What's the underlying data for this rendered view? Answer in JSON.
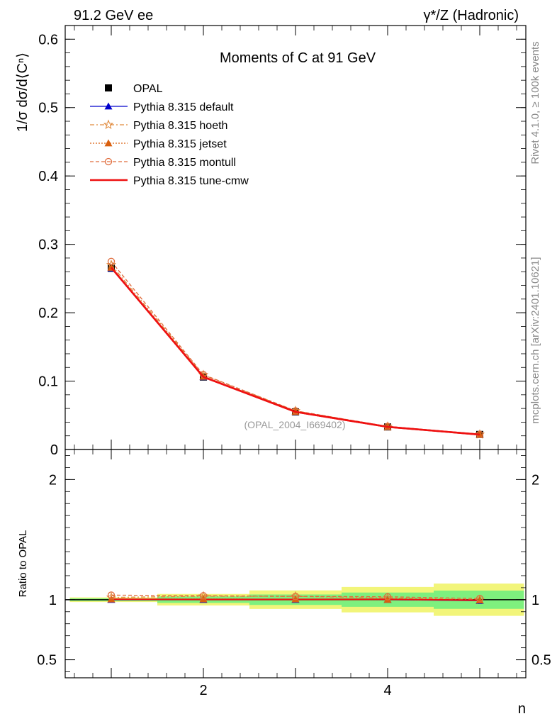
{
  "header": {
    "left_title": "91.2 GeV ee",
    "right_title": "γ*/Z (Hadronic)"
  },
  "side_labels": {
    "rivet": "Rivet 4.1.0, ≥ 100k events",
    "mcplots": "mcplots.cern.ch [arXiv:2401.10621]"
  },
  "chart_data": {
    "type": "line",
    "title": "Moments of C at 91 GeV",
    "analysis_tag": "(OPAL_2004_I669402)",
    "xlabel": "n",
    "ylabel": "1/σ  dσ/d⟨Cⁿ⟩",
    "ratio_ylabel": "Ratio to OPAL",
    "xlim": [
      0.5,
      5.5
    ],
    "ylim": [
      0,
      0.62
    ],
    "ratio_ylim": [
      0.35,
      2.25
    ],
    "x_ticks": [
      2,
      4
    ],
    "y_ticks": [
      0,
      0.1,
      0.2,
      0.3,
      0.4,
      0.5,
      0.6
    ],
    "y_tick_labels": [
      "0",
      "0.1",
      "0.2",
      "0.3",
      "0.4",
      "0.5",
      "0.6"
    ],
    "ratio_ticks": [
      0.5,
      1,
      2
    ],
    "ratio_tick_labels": [
      "0.5",
      "1",
      "2"
    ],
    "x": [
      1,
      2,
      3,
      4,
      5
    ],
    "data": {
      "name": "OPAL",
      "values": [
        0.265,
        0.106,
        0.055,
        0.033,
        0.022
      ],
      "errors": [
        0.002,
        0.001,
        0.0006,
        0.0004,
        0.0003
      ]
    },
    "series": [
      {
        "name": "Pythia 8.315 default",
        "color": "#0000cc",
        "dash": "",
        "marker": "triangle",
        "values": [
          0.265,
          0.106,
          0.055,
          0.033,
          0.0218
        ]
      },
      {
        "name": "Pythia 8.315 hoeth",
        "color": "#e08a3c",
        "dash": "6,3,2,3",
        "marker": "star",
        "values": [
          0.27,
          0.109,
          0.0565,
          0.0335,
          0.022
        ]
      },
      {
        "name": "Pythia 8.315 jetset",
        "color": "#d95f0e",
        "dash": "2,2",
        "marker": "triangle-filled",
        "values": [
          0.266,
          0.1065,
          0.0552,
          0.033,
          0.0219
        ]
      },
      {
        "name": "Pythia 8.315 montull",
        "color": "#e06c3c",
        "dash": "5,3",
        "marker": "circle-open",
        "values": [
          0.275,
          0.1095,
          0.0565,
          0.0338,
          0.0222
        ]
      },
      {
        "name": "Pythia 8.315 tune-cmw",
        "color": "#ee1111",
        "dash": "",
        "marker": "none",
        "values": [
          0.266,
          0.1062,
          0.0551,
          0.0331,
          0.0219
        ]
      }
    ],
    "colors": {
      "band_inner": "#7ef07e",
      "band_outer": "#f2f57a",
      "data_marker": "#000000"
    }
  }
}
